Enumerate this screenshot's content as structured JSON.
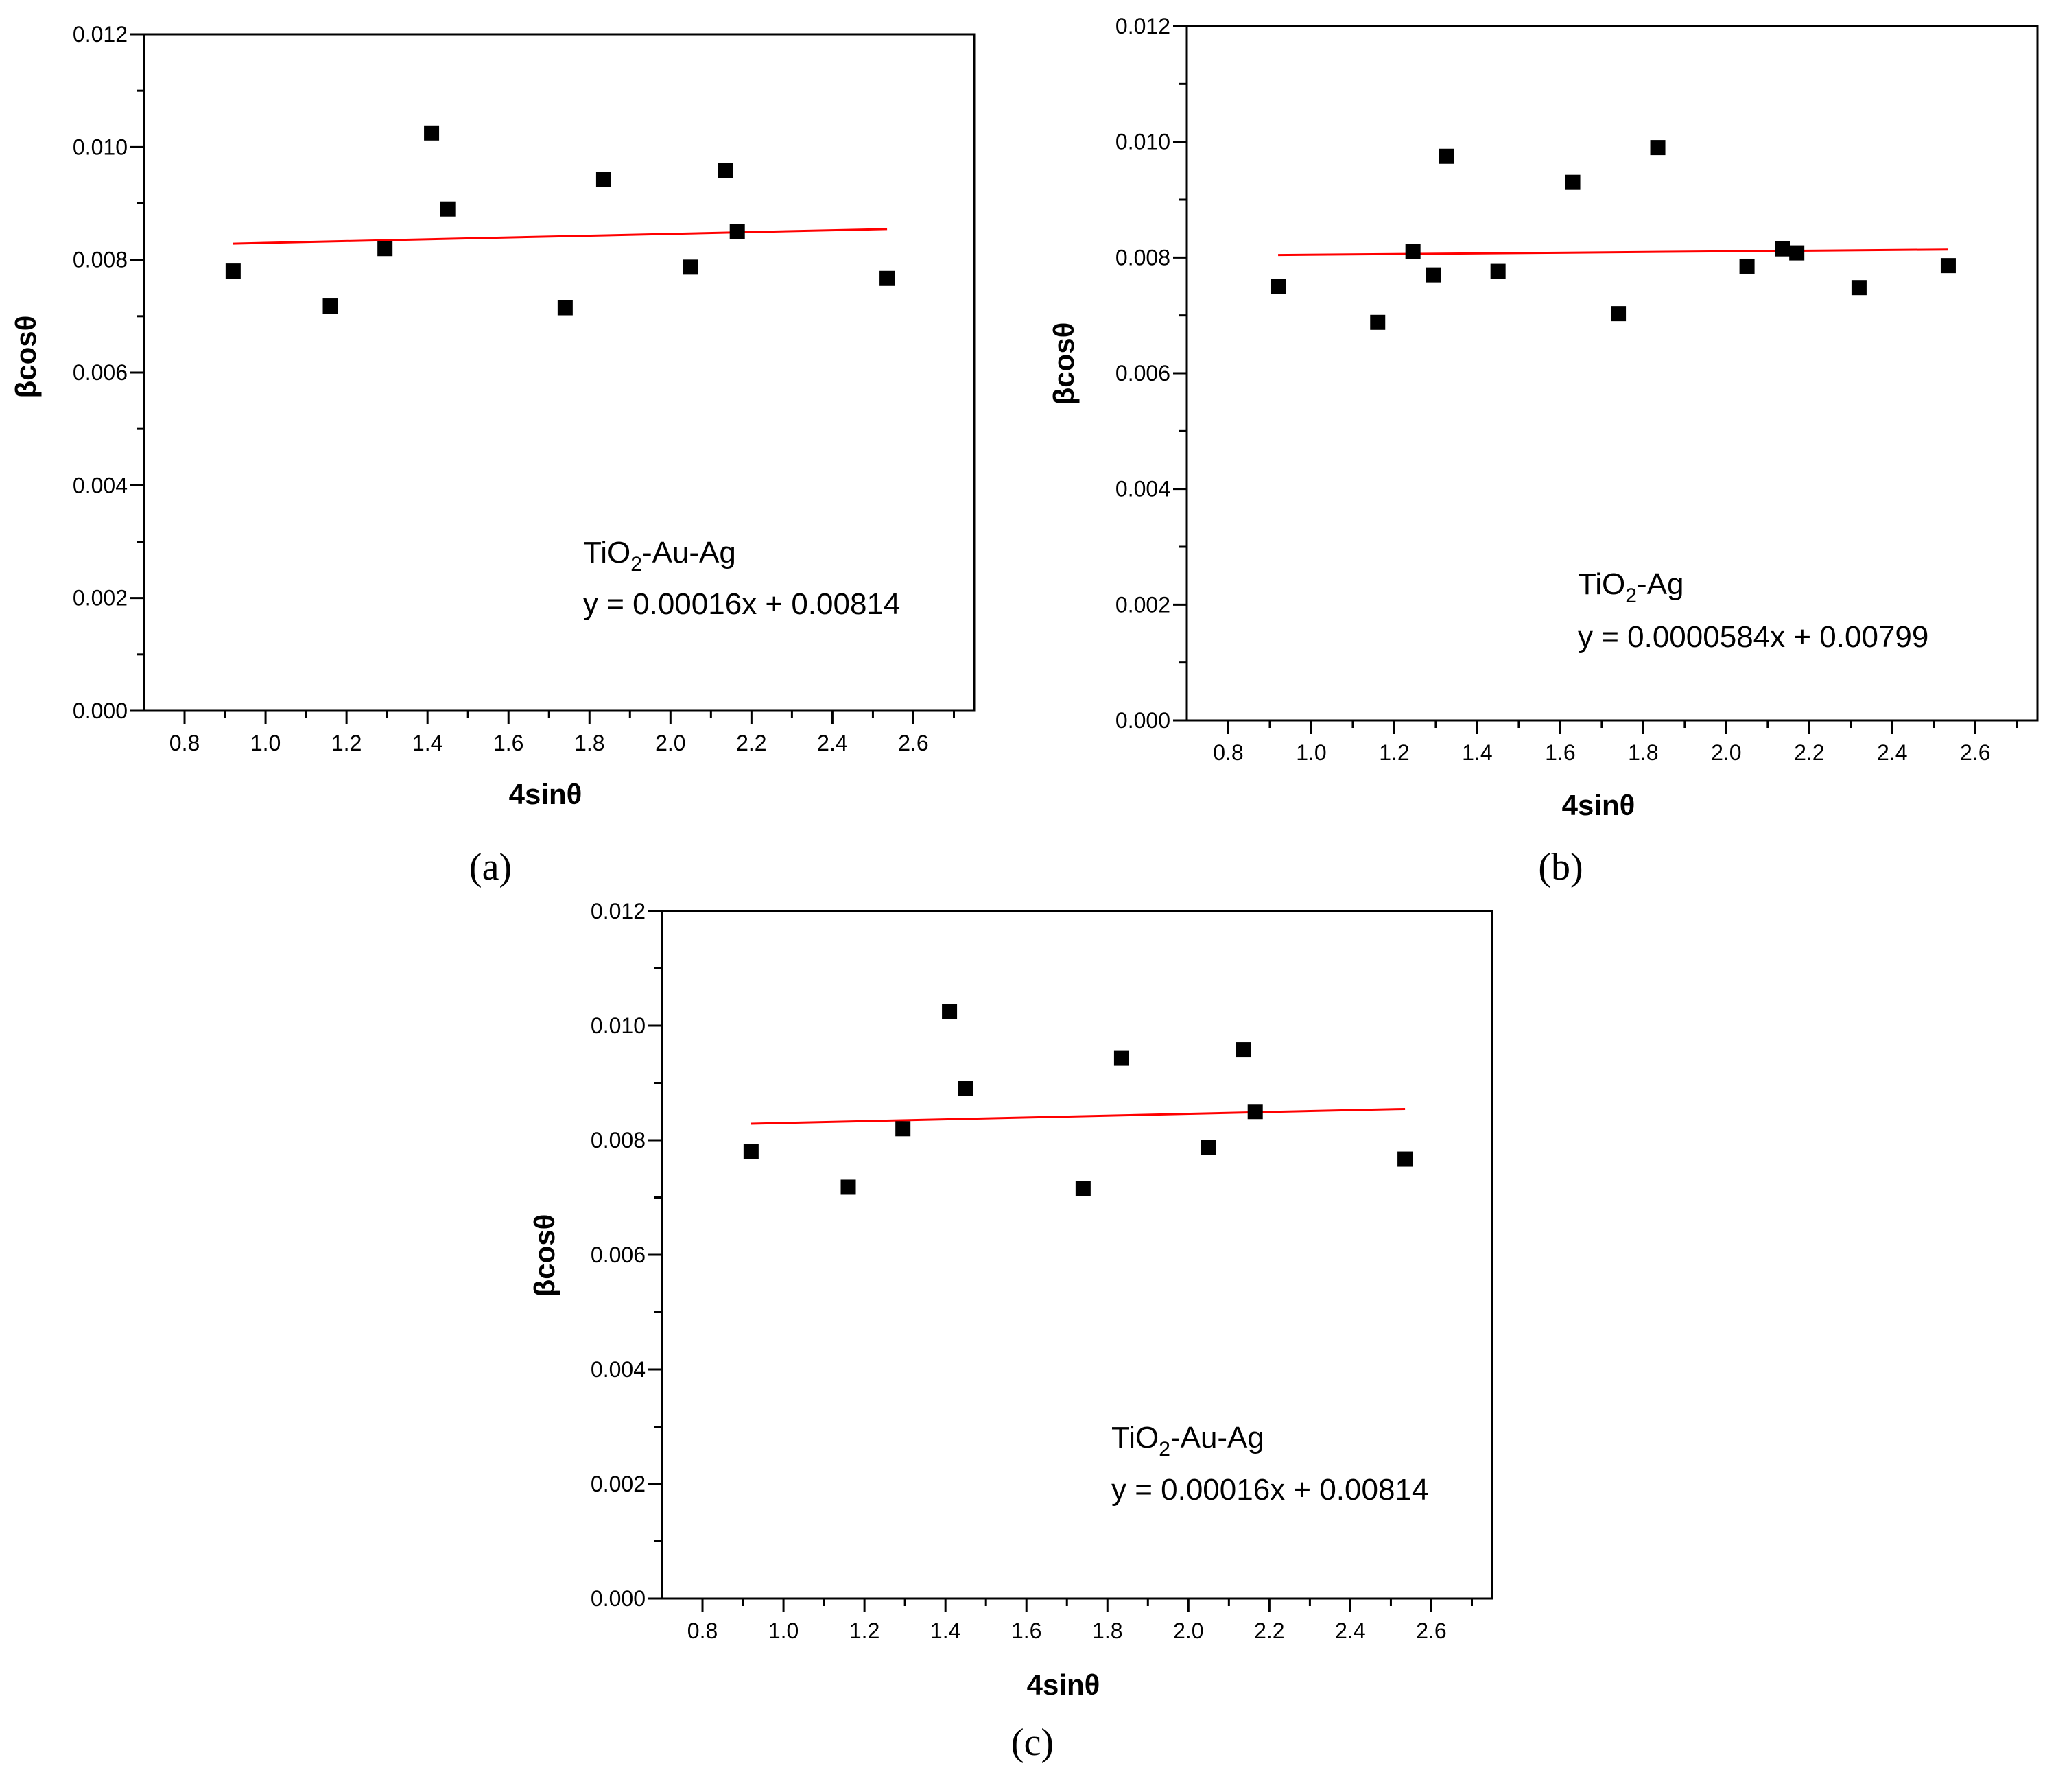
{
  "chart_data": [
    {
      "panel": "a",
      "type": "scatter",
      "xlabel": "4sinθ",
      "ylabel": "βcosθ",
      "xlim": [
        0.7,
        2.75
      ],
      "ylim": [
        0.0,
        0.012
      ],
      "xticks": [
        "0.8",
        "1.0",
        "1.2",
        "1.4",
        "1.6",
        "1.8",
        "2.0",
        "2.2",
        "2.4",
        "2.6"
      ],
      "yticks": [
        "0.000",
        "0.002",
        "0.004",
        "0.006",
        "0.008",
        "0.010",
        "0.012"
      ],
      "points": [
        {
          "x": 0.92,
          "y": 0.0078
        },
        {
          "x": 1.16,
          "y": 0.00718
        },
        {
          "x": 1.295,
          "y": 0.0082
        },
        {
          "x": 1.41,
          "y": 0.01025
        },
        {
          "x": 1.45,
          "y": 0.0089
        },
        {
          "x": 1.74,
          "y": 0.00715
        },
        {
          "x": 1.835,
          "y": 0.00943
        },
        {
          "x": 2.05,
          "y": 0.00787
        },
        {
          "x": 2.135,
          "y": 0.00958
        },
        {
          "x": 2.165,
          "y": 0.0085
        },
        {
          "x": 2.535,
          "y": 0.00767
        }
      ],
      "fit": {
        "slope": 0.00016,
        "intercept": 0.00814,
        "x_range": [
          0.92,
          2.535
        ],
        "color": "#ff0000"
      },
      "legend_lines": {
        "sample_main": "TiO",
        "sample_sub": "2",
        "sample_rest": "-Au-Ag",
        "equation": "y = 0.00016x + 0.00814"
      },
      "caption": "(a)"
    },
    {
      "panel": "b",
      "type": "scatter",
      "xlabel": "4sinθ",
      "ylabel": "βcosθ",
      "xlim": [
        0.7,
        2.75
      ],
      "ylim": [
        0.0,
        0.012
      ],
      "xticks": [
        "0.8",
        "1.0",
        "1.2",
        "1.4",
        "1.6",
        "1.8",
        "2.0",
        "2.2",
        "2.4",
        "2.6"
      ],
      "yticks": [
        "0.000",
        "0.002",
        "0.004",
        "0.006",
        "0.008",
        "0.010",
        "0.012"
      ],
      "points": [
        {
          "x": 0.92,
          "y": 0.0075
        },
        {
          "x": 1.16,
          "y": 0.00688
        },
        {
          "x": 1.245,
          "y": 0.00811
        },
        {
          "x": 1.295,
          "y": 0.0077
        },
        {
          "x": 1.325,
          "y": 0.00975
        },
        {
          "x": 1.45,
          "y": 0.00776
        },
        {
          "x": 1.63,
          "y": 0.0093
        },
        {
          "x": 1.74,
          "y": 0.00703
        },
        {
          "x": 1.835,
          "y": 0.0099
        },
        {
          "x": 2.05,
          "y": 0.00785
        },
        {
          "x": 2.135,
          "y": 0.00815
        },
        {
          "x": 2.17,
          "y": 0.00808
        },
        {
          "x": 2.32,
          "y": 0.00748
        },
        {
          "x": 2.535,
          "y": 0.00786
        }
      ],
      "fit": {
        "slope": 5.84e-05,
        "intercept": 0.00799,
        "x_range": [
          0.92,
          2.535
        ],
        "color": "#ff0000"
      },
      "legend_lines": {
        "sample_main": "TiO",
        "sample_sub": "2",
        "sample_rest": "-Ag",
        "equation": "y = 0.0000584x + 0.00799"
      },
      "caption": "(b)"
    },
    {
      "panel": "c",
      "type": "scatter",
      "xlabel": "4sinθ",
      "ylabel": "βcosθ",
      "xlim": [
        0.7,
        2.75
      ],
      "ylim": [
        0.0,
        0.012
      ],
      "xticks": [
        "0.8",
        "1.0",
        "1.2",
        "1.4",
        "1.6",
        "1.8",
        "2.0",
        "2.2",
        "2.4",
        "2.6"
      ],
      "yticks": [
        "0.000",
        "0.002",
        "0.004",
        "0.006",
        "0.008",
        "0.010",
        "0.012"
      ],
      "points": [
        {
          "x": 0.92,
          "y": 0.0078
        },
        {
          "x": 1.16,
          "y": 0.00718
        },
        {
          "x": 1.295,
          "y": 0.0082
        },
        {
          "x": 1.41,
          "y": 0.01025
        },
        {
          "x": 1.45,
          "y": 0.0089
        },
        {
          "x": 1.74,
          "y": 0.00715
        },
        {
          "x": 1.835,
          "y": 0.00943
        },
        {
          "x": 2.05,
          "y": 0.00787
        },
        {
          "x": 2.135,
          "y": 0.00958
        },
        {
          "x": 2.165,
          "y": 0.0085
        },
        {
          "x": 2.535,
          "y": 0.00767
        }
      ],
      "fit": {
        "slope": 0.00016,
        "intercept": 0.00814,
        "x_range": [
          0.92,
          2.535
        ],
        "color": "#ff0000"
      },
      "legend_lines": {
        "sample_main": "TiO",
        "sample_sub": "2",
        "sample_rest": "-Au-Ag",
        "equation": "y = 0.00016x + 0.00814"
      },
      "caption": "(c)"
    }
  ]
}
